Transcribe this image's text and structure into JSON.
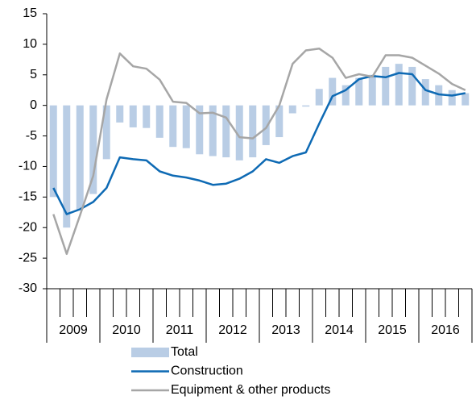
{
  "chart_data": {
    "type": "combo",
    "categories": [
      null,
      null,
      null,
      null,
      null,
      null,
      null,
      null,
      null,
      null,
      null,
      null,
      null,
      null,
      null,
      null,
      null,
      null,
      null,
      null,
      null,
      null,
      null,
      null,
      null,
      null,
      null,
      null,
      null,
      null,
      null,
      null
    ],
    "years": [
      "2009",
      "2010",
      "2011",
      "2012",
      "2013",
      "2014",
      "2015",
      "2016"
    ],
    "series": [
      {
        "name": "Total",
        "type": "bar",
        "color": "#b9cde5",
        "values": [
          -15,
          -20,
          -17,
          -14.5,
          -8.8,
          -2.8,
          -3.6,
          -3.7,
          -5.3,
          -6.8,
          -7,
          -8,
          -8.3,
          -8.5,
          -9,
          -8.5,
          -6.5,
          -5.2,
          -1.3,
          -0.2,
          2.7,
          4.5,
          3.3,
          4.5,
          5,
          6.3,
          6.8,
          6.3,
          4.3,
          3.3,
          2.5,
          2
        ]
      },
      {
        "name": "Construction",
        "type": "line",
        "color": "#0e6ab4",
        "values": [
          -13.5,
          -17.8,
          -17,
          -15.8,
          -13.5,
          -8.5,
          -8.8,
          -9,
          -10.8,
          -11.5,
          -11.8,
          -12.3,
          -13,
          -12.8,
          -12,
          -10.8,
          -8.8,
          -9.4,
          -8.3,
          -7.7,
          -3,
          1.5,
          2.5,
          4.3,
          4.8,
          4.6,
          5.3,
          5.1,
          2.5,
          1.8,
          1.6,
          2
        ]
      },
      {
        "name": "Equipment & other products",
        "type": "line",
        "color": "#a6a6a6",
        "values": [
          -17.8,
          -24.3,
          -18,
          -11.5,
          1,
          8.5,
          6.4,
          6,
          4.2,
          0.6,
          0.4,
          -1.3,
          -1.2,
          -2,
          -5.2,
          -5.4,
          -3.7,
          0,
          6.8,
          9,
          9.3,
          7.8,
          4.5,
          5.1,
          4.7,
          8.2,
          8.2,
          7.8,
          6.5,
          5.2,
          3.5,
          2.5
        ]
      }
    ],
    "ylim": [
      -30,
      15
    ],
    "yticks": [
      -30,
      -25,
      -20,
      -15,
      -10,
      -5,
      0,
      5,
      10,
      15
    ],
    "grid": false,
    "legend": "bottom"
  }
}
